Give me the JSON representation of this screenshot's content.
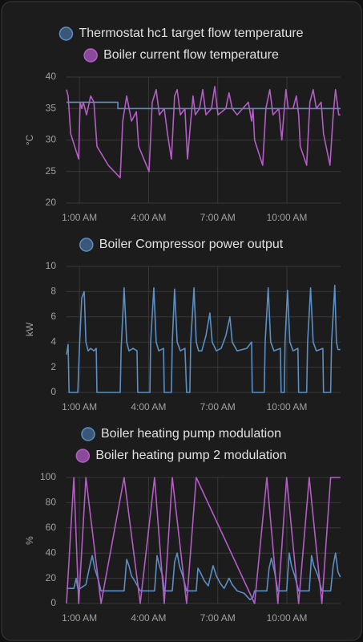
{
  "chart_data": [
    {
      "type": "line",
      "ylabel": "°C",
      "ylim": [
        20,
        40
      ],
      "yticks": [
        20,
        25,
        30,
        35,
        40
      ],
      "xlim": [
        0.44,
        12.33
      ],
      "xticks": [
        {
          "value": 1,
          "label": "1:00 AM"
        },
        {
          "value": 4,
          "label": "4:00 AM"
        },
        {
          "value": 7,
          "label": "7:00 AM"
        },
        {
          "value": 10,
          "label": "10:00 AM"
        }
      ],
      "grid": true,
      "step": [
        true,
        false
      ],
      "series": [
        {
          "name": "Thermostat hc1 target flow temperature",
          "color": "#5b8fc4",
          "legend_color": "#3b5778",
          "x": [
            0.44,
            2.67,
            2.67,
            12.33
          ],
          "values": [
            36,
            36,
            35,
            35
          ]
        },
        {
          "name": "Boiler current flow temperature",
          "color": "#b35ec4",
          "legend_color": "#8a4a9c",
          "x": [
            0.44,
            0.51,
            0.62,
            0.97,
            1.03,
            1.1,
            1.17,
            1.31,
            1.49,
            1.63,
            1.76,
            2.25,
            2.77,
            2.88,
            3.05,
            3.26,
            3.47,
            3.57,
            4.02,
            4.16,
            4.33,
            4.47,
            4.68,
            4.82,
            4.99,
            5.13,
            5.24,
            5.38,
            5.58,
            5.69,
            5.83,
            5.93,
            6.03,
            6.21,
            6.35,
            6.49,
            6.73,
            6.87,
            7.01,
            7.35,
            7.49,
            7.63,
            7.84,
            8.33,
            8.47,
            8.53,
            8.6,
            8.95,
            9.09,
            9.26,
            9.4,
            9.65,
            9.78,
            9.89,
            9.96,
            10.06,
            10.27,
            10.41,
            10.51,
            10.58,
            10.86,
            11.0,
            11.14,
            11.28,
            11.49,
            11.59,
            11.87,
            12.01,
            12.11,
            12.25,
            12.32
          ],
          "values": [
            38,
            37,
            31,
            27,
            36,
            35,
            36,
            34,
            37,
            36,
            29,
            26,
            24,
            33,
            37,
            33,
            34.5,
            29,
            25,
            36,
            38,
            34,
            35,
            31,
            27,
            37,
            38,
            34,
            35,
            27,
            33,
            37,
            34,
            35,
            38,
            34,
            35,
            38.5,
            34,
            35,
            37.5,
            35,
            34,
            36,
            33,
            35,
            30,
            26,
            35,
            38,
            34,
            35,
            30,
            35,
            38,
            35,
            35,
            37,
            34,
            29,
            26,
            36,
            38,
            35,
            36,
            31,
            26,
            34,
            38,
            34,
            34
          ]
        }
      ]
    },
    {
      "type": "line",
      "ylabel": "kW",
      "ylim": [
        0,
        10
      ],
      "yticks": [
        0,
        2,
        4,
        6,
        8,
        10
      ],
      "xlim": [
        0.44,
        12.33
      ],
      "xticks": [
        {
          "value": 1,
          "label": "1:00 AM"
        },
        {
          "value": 4,
          "label": "4:00 AM"
        },
        {
          "value": 7,
          "label": "7:00 AM"
        },
        {
          "value": 10,
          "label": "10:00 AM"
        }
      ],
      "grid": true,
      "step": [
        false
      ],
      "series": [
        {
          "name": "Boiler Compressor power output",
          "color": "#5b8fc4",
          "legend_color": "#3b5778",
          "x": [
            0.44,
            0.51,
            0.55,
            0.93,
            1.0,
            1.1,
            1.21,
            1.28,
            1.38,
            1.49,
            1.63,
            1.73,
            1.76,
            2.77,
            2.81,
            2.94,
            3.05,
            3.15,
            3.33,
            3.5,
            3.53,
            4.06,
            4.09,
            4.23,
            4.33,
            4.44,
            4.65,
            4.68,
            4.99,
            5.03,
            5.13,
            5.24,
            5.38,
            5.58,
            5.65,
            5.79,
            5.83,
            5.97,
            6.07,
            6.17,
            6.31,
            6.49,
            6.66,
            6.76,
            6.94,
            7.15,
            7.35,
            7.53,
            7.63,
            7.84,
            8.26,
            8.47,
            8.5,
            9.02,
            9.06,
            9.19,
            9.3,
            9.44,
            9.72,
            9.75,
            9.89,
            9.92,
            10.03,
            10.13,
            10.27,
            10.48,
            10.51,
            10.86,
            10.9,
            11.03,
            11.14,
            11.28,
            11.56,
            11.59,
            11.9,
            11.94,
            12.08,
            12.15,
            12.22,
            12.32
          ],
          "values": [
            3,
            3.8,
            0,
            0,
            3.5,
            7.5,
            8,
            4,
            3.3,
            3.5,
            3.3,
            3.5,
            0,
            0,
            3.5,
            8.3,
            4,
            3.3,
            3.5,
            3.3,
            0,
            0,
            4,
            8.3,
            4,
            3.3,
            3.5,
            0,
            0,
            4,
            8.2,
            4,
            3.3,
            3.5,
            0,
            0,
            4,
            8.3,
            4,
            3.3,
            3.3,
            4.5,
            6.3,
            4,
            3.3,
            3.5,
            4.5,
            6,
            4,
            3.3,
            3.5,
            4,
            0,
            0,
            4,
            8.3,
            4,
            3.3,
            3.5,
            0,
            0,
            4,
            8.1,
            4,
            3.3,
            3.5,
            0,
            0,
            4,
            8.3,
            4,
            3.3,
            3.5,
            0,
            0,
            4,
            8.5,
            4,
            3.4,
            3.4
          ]
        }
      ]
    },
    {
      "type": "line",
      "ylabel": "%",
      "ylim": [
        0,
        100
      ],
      "yticks": [
        0,
        20,
        40,
        60,
        80,
        100
      ],
      "xlim": [
        0.44,
        12.33
      ],
      "xticks": [
        {
          "value": 1,
          "label": "1:00 AM"
        },
        {
          "value": 4,
          "label": "4:00 AM"
        },
        {
          "value": 7,
          "label": "7:00 AM"
        },
        {
          "value": 10,
          "label": "10:00 AM"
        }
      ],
      "grid": true,
      "step": [
        false,
        true
      ],
      "series": [
        {
          "name": "Boiler heating pump modulation",
          "color": "#5b8fc4",
          "legend_color": "#3b5778",
          "x": [
            0.44,
            0.76,
            0.86,
            0.93,
            1.03,
            1.28,
            1.45,
            1.56,
            1.66,
            1.8,
            1.94,
            2.94,
            3.05,
            3.15,
            3.26,
            3.4,
            3.64,
            4.26,
            4.37,
            4.47,
            4.61,
            4.68,
            5.03,
            5.13,
            5.24,
            5.34,
            5.48,
            5.65,
            6.07,
            6.14,
            6.24,
            6.42,
            6.59,
            6.8,
            6.94,
            7.11,
            7.28,
            7.49,
            7.63,
            7.84,
            8.15,
            8.4,
            8.53,
            8.6,
            9.13,
            9.23,
            9.33,
            9.47,
            9.61,
            9.99,
            10.1,
            10.2,
            10.34,
            10.51,
            10.97,
            11.07,
            11.17,
            11.35,
            11.52,
            11.9,
            12.01,
            12.11,
            12.22,
            12.32
          ],
          "values": [
            12,
            12,
            20,
            12,
            12,
            15,
            30,
            38,
            28,
            20,
            10,
            10,
            35,
            30,
            22,
            18,
            10,
            10,
            38,
            30,
            22,
            10,
            10,
            33,
            40,
            30,
            22,
            10,
            10,
            28,
            25,
            18,
            14,
            30,
            22,
            16,
            12,
            20,
            15,
            10,
            8,
            3,
            5,
            10,
            10,
            28,
            36,
            25,
            10,
            10,
            40,
            30,
            22,
            10,
            10,
            38,
            30,
            22,
            10,
            10,
            30,
            40,
            25,
            21
          ]
        },
        {
          "name": "Boiler heating pump 2 modulation",
          "color": "#b35ec4",
          "legend_color": "#8a4a9c",
          "x": [
            0.44,
            0.76,
            0.97,
            1.28,
            1.94,
            2.94,
            3.64,
            4.26,
            4.68,
            5.03,
            5.65,
            6.07,
            8.6,
            9.13,
            9.61,
            9.99,
            10.51,
            10.97,
            11.52,
            11.9,
            12.32
          ],
          "values": [
            0,
            100,
            0,
            100,
            0,
            100,
            0,
            100,
            0,
            100,
            0,
            100,
            0,
            100,
            0,
            100,
            0,
            100,
            0,
            100,
            100
          ]
        }
      ]
    }
  ]
}
